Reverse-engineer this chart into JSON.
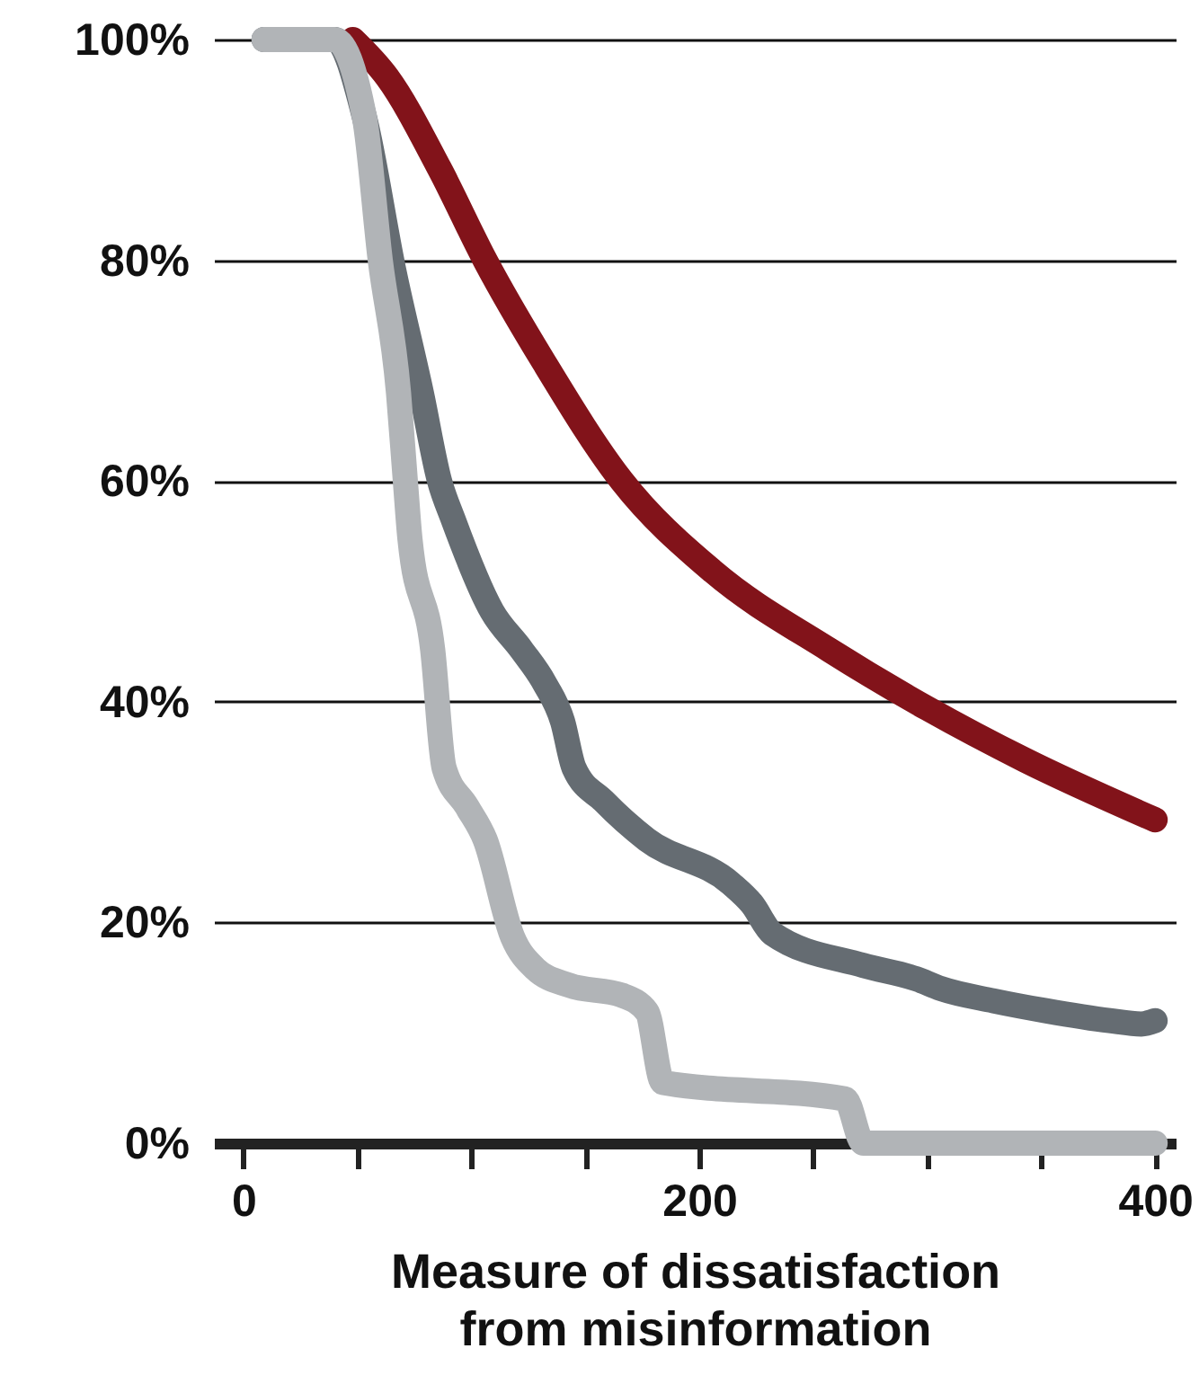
{
  "chart_data": {
    "type": "line",
    "xlabel": "Measure of dissatisfaction\nfrom misinformation",
    "xlim": [
      -13,
      409
    ],
    "xticks": [
      0,
      {
        "value": 50,
        "label": null
      },
      {
        "value": 100,
        "label": null
      },
      {
        "value": 150,
        "label": null
      },
      200,
      {
        "value": 250,
        "label": null
      },
      {
        "value": 300,
        "label": null
      },
      {
        "value": 350,
        "label": null
      },
      400
    ],
    "ylim": [
      0,
      100
    ],
    "yticks": [
      {
        "value": 0,
        "label": "0%"
      },
      {
        "value": 20,
        "label": "20%"
      },
      {
        "value": 40,
        "label": "40%"
      },
      {
        "value": 60,
        "label": "60%"
      },
      {
        "value": 80,
        "label": "80%"
      },
      {
        "value": 100,
        "label": "100%"
      }
    ],
    "grid": "y",
    "series": [
      {
        "color": "#82131a",
        "x": [
          48,
          63,
          86,
          106,
          132,
          166,
          206,
          257,
          300,
          343,
          400
        ],
        "values": [
          100,
          96.6,
          88.3,
          80,
          70.7,
          60,
          51.8,
          44.7,
          39.4,
          34.7,
          29.3
        ]
      },
      {
        "color": "#656c72",
        "x": [
          9,
          40,
          53,
          66,
          78,
          86,
          92,
          109,
          122,
          132,
          140,
          145,
          158,
          177,
          214,
          223,
          232,
          272,
          295,
          306,
          329,
          352,
          380,
          394,
          400
        ],
        "values": [
          100,
          100,
          93,
          79,
          68,
          60,
          56.5,
          48.2,
          44.7,
          41.7,
          38.2,
          34,
          31,
          27.5,
          23.5,
          21.7,
          19,
          16.1,
          14.9,
          14,
          12.9,
          12,
          11.1,
          10.8,
          11.1
        ]
      },
      {
        "color": "#b1b4b7",
        "x": [
          9,
          40,
          53,
          60,
          68,
          71,
          73,
          83,
          88,
          98,
          106,
          118,
          128,
          143,
          166,
          177,
          184,
          264,
          272,
          400
        ],
        "values": [
          100,
          100,
          93,
          80,
          68,
          60,
          54.8,
          44.7,
          34,
          30.5,
          27.5,
          18.7,
          15.8,
          14.3,
          13.4,
          11.9,
          5.5,
          4,
          0,
          0
        ]
      }
    ]
  }
}
